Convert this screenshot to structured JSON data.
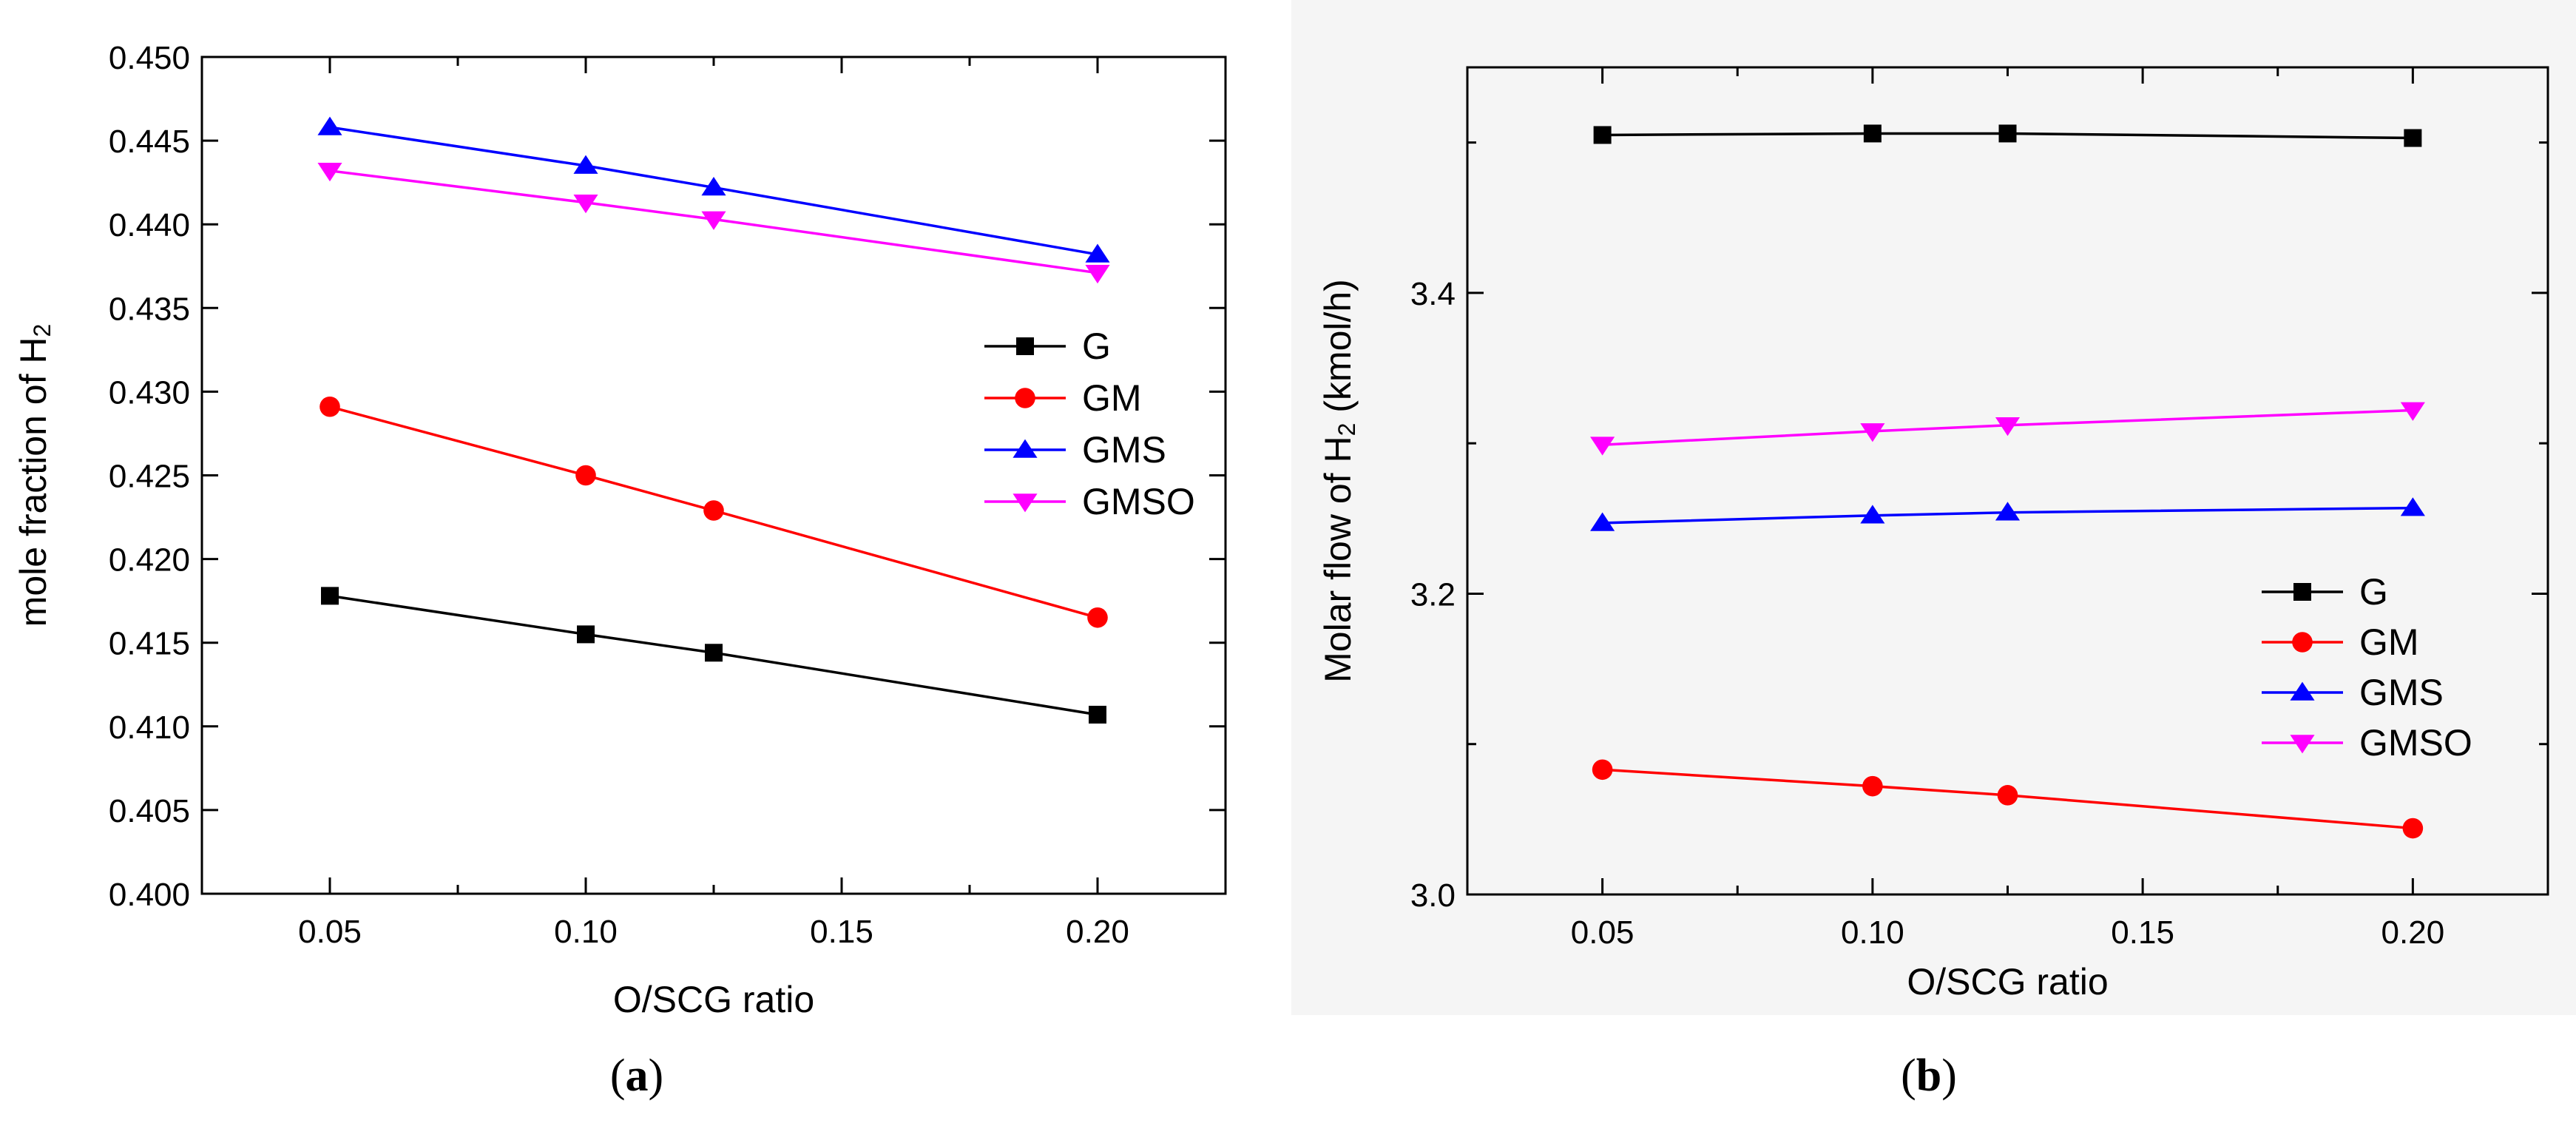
{
  "chart_data": [
    {
      "type": "line",
      "panel_label": "a",
      "xlabel": "O/SCG ratio",
      "ylabel": {
        "main": "mole fraction of H",
        "sub": "2",
        "suffix": ""
      },
      "xlim": [
        0.025,
        0.225
      ],
      "ylim": [
        0.4,
        0.45
      ],
      "xticks": [
        "0.05",
        "0.10",
        "0.15",
        "0.20"
      ],
      "xtick_values": [
        0.05,
        0.1,
        0.15,
        0.2
      ],
      "yticks": [
        "0.400",
        "0.405",
        "0.410",
        "0.415",
        "0.420",
        "0.425",
        "0.430",
        "0.435",
        "0.440",
        "0.445",
        "0.450"
      ],
      "ytick_values": [
        0.4,
        0.405,
        0.41,
        0.415,
        0.42,
        0.425,
        0.43,
        0.435,
        0.44,
        0.445,
        0.45
      ],
      "legend_position": "middle-right",
      "x": [
        0.05,
        0.1,
        0.125,
        0.2
      ],
      "series": [
        {
          "name": "G",
          "color": "#000000",
          "marker": "square",
          "values": [
            0.4178,
            0.4155,
            0.4144,
            0.4107
          ]
        },
        {
          "name": "GM",
          "color": "#ff0000",
          "marker": "circle",
          "values": [
            0.4291,
            0.425,
            0.4229,
            0.4165
          ]
        },
        {
          "name": "GMS",
          "color": "#0000ff",
          "marker": "triangle-up",
          "values": [
            0.4458,
            0.4435,
            0.4422,
            0.4382
          ]
        },
        {
          "name": "GMSO",
          "color": "#ff00ff",
          "marker": "triangle-down",
          "values": [
            0.4432,
            0.4413,
            0.4403,
            0.4371
          ]
        }
      ]
    },
    {
      "type": "line",
      "panel_label": "b",
      "xlabel": "O/SCG ratio",
      "ylabel": {
        "main": "Molar flow of H",
        "sub": "2",
        "suffix": "  (kmol/h)"
      },
      "xlim": [
        0.025,
        0.225
      ],
      "ylim": [
        3.0,
        3.55
      ],
      "xticks": [
        "0.05",
        "0.10",
        "0.15",
        "0.20"
      ],
      "xtick_values": [
        0.05,
        0.1,
        0.15,
        0.2
      ],
      "yticks": [
        "3.0",
        "3.2",
        "3.4"
      ],
      "ytick_values": [
        3.0,
        3.2,
        3.4
      ],
      "legend_position": "lower-right",
      "x": [
        0.05,
        0.1,
        0.125,
        0.2
      ],
      "series": [
        {
          "name": "G",
          "color": "#000000",
          "marker": "square",
          "values": [
            3.505,
            3.506,
            3.506,
            3.503
          ]
        },
        {
          "name": "GM",
          "color": "#ff0000",
          "marker": "circle",
          "values": [
            3.083,
            3.072,
            3.066,
            3.044
          ]
        },
        {
          "name": "GMS",
          "color": "#0000ff",
          "marker": "triangle-up",
          "values": [
            3.247,
            3.252,
            3.254,
            3.257
          ]
        },
        {
          "name": "GMSO",
          "color": "#ff00ff",
          "marker": "triangle-down",
          "values": [
            3.299,
            3.308,
            3.312,
            3.322
          ]
        }
      ]
    }
  ]
}
